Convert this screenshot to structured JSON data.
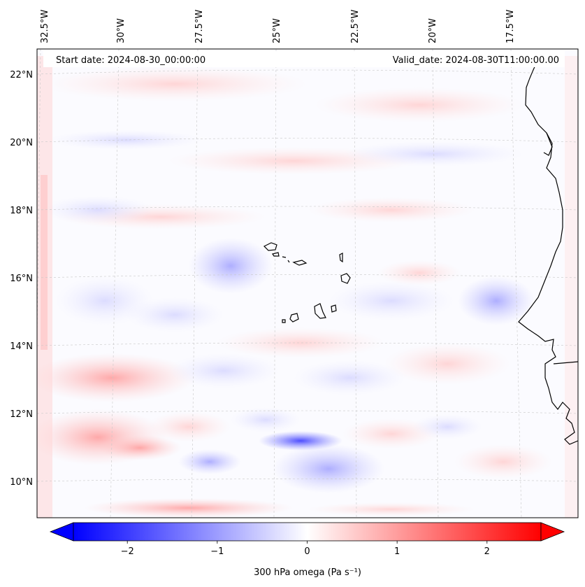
{
  "header": {
    "start_date": "Start date: 2024-08-30_00:00:00",
    "valid_date": "Valid_date: 2024-08-30T11:00:00.00"
  },
  "map": {
    "projection": "Lambert conformal",
    "lon_labels": [
      "32.5°W",
      "30°W",
      "27.5°W",
      "25°W",
      "22.5°W",
      "20°W",
      "17.5°W"
    ],
    "lat_labels": [
      "22°N",
      "20°N",
      "18°N",
      "16°N",
      "14°N",
      "12°N",
      "10°N"
    ],
    "gridlines": "on, dashed, light grey",
    "features": [
      "Cape Verde islands",
      "West African coastline"
    ]
  },
  "colorbar": {
    "label": "300 hPa omega (Pa s⁻¹)",
    "ticks": [
      "−2",
      "−1",
      "0",
      "1",
      "2"
    ],
    "tick_values": [
      -2,
      -1,
      0,
      1,
      2
    ],
    "range": [
      -2.6,
      2.6
    ],
    "colormap": "bwr",
    "extend": "both",
    "color_min": "#0000ff",
    "color_mid": "#ffffff",
    "color_max": "#ff0000"
  }
}
